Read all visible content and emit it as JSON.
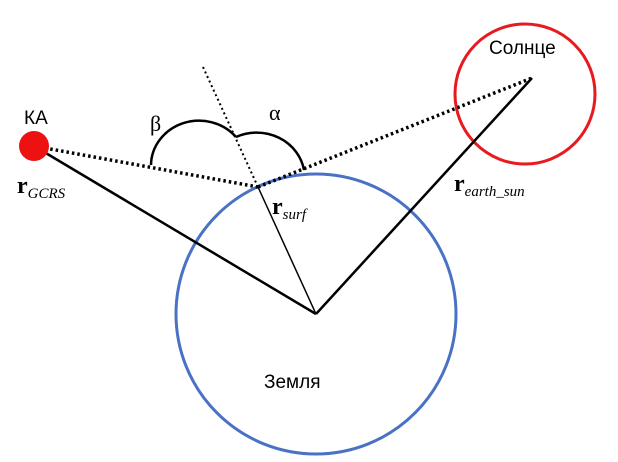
{
  "labels": {
    "spacecraft": "КА",
    "sun": "Солнце",
    "earth": "Земля",
    "angle_beta": "β",
    "angle_alpha": "α"
  },
  "vectors": {
    "r_gcrs": {
      "symbol": "r",
      "subscript": "GCRS"
    },
    "r_surf": {
      "symbol": "r",
      "subscript": "surf"
    },
    "r_earth_sun": {
      "symbol": "r",
      "subscript": "earth_sun"
    }
  },
  "colors": {
    "earth_circle": "#4a72c4",
    "sun_circle": "#e8191f",
    "spacecraft_dot": "#ee1111",
    "lines": "#000000"
  }
}
